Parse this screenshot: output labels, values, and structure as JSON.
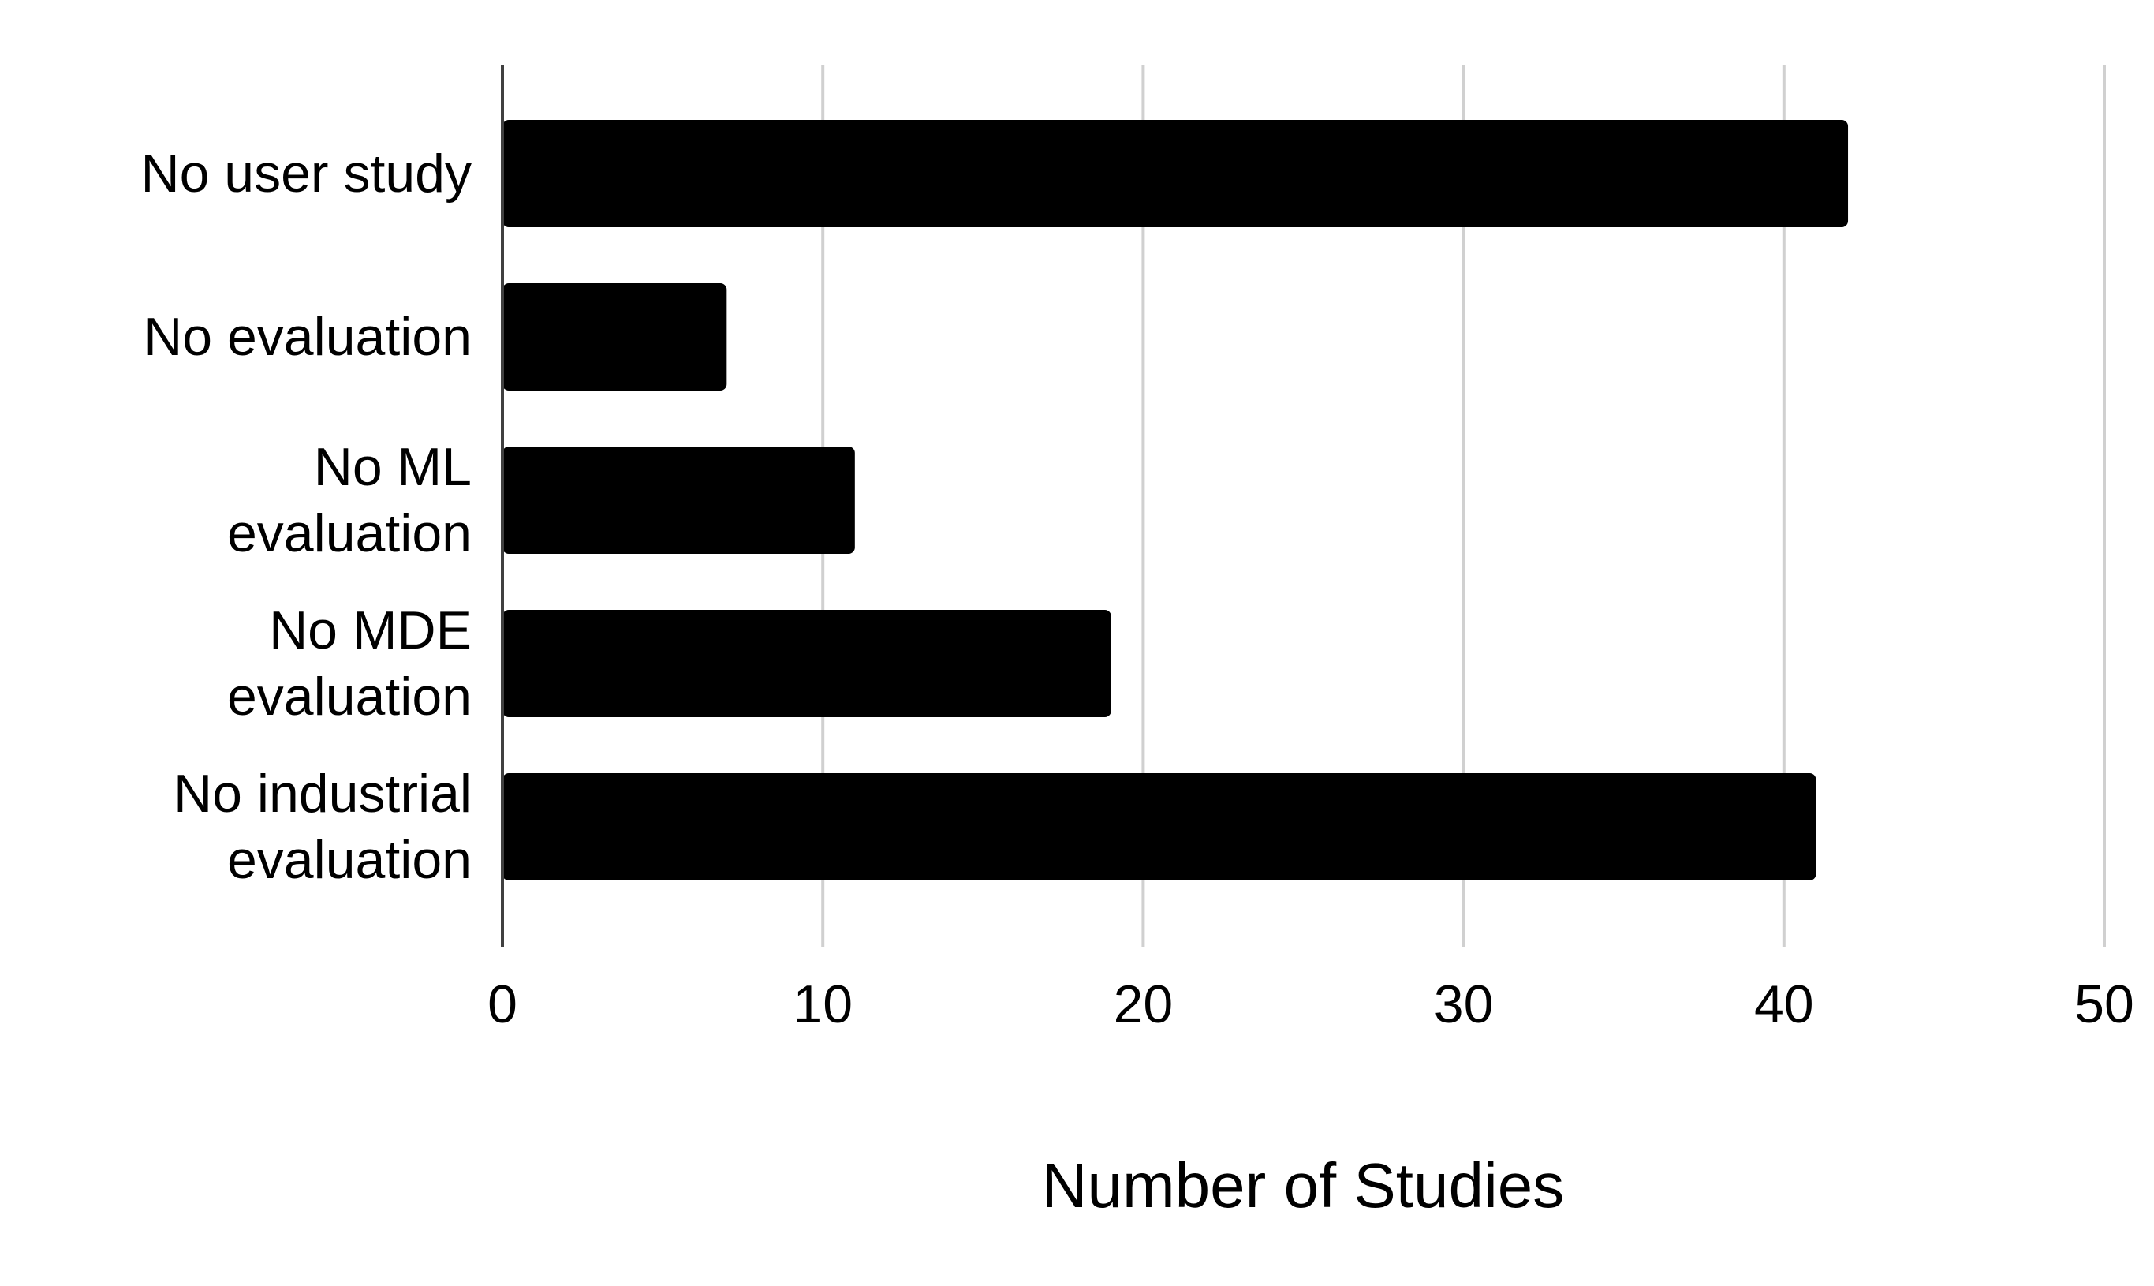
{
  "chart_data": {
    "type": "bar",
    "orientation": "horizontal",
    "categories": [
      [
        "No user study"
      ],
      [
        "No evaluation"
      ],
      [
        "No ML",
        "evaluation"
      ],
      [
        "No MDE",
        "evaluation"
      ],
      [
        "No industrial",
        "evaluation"
      ]
    ],
    "values": [
      42,
      7,
      11,
      19,
      41
    ],
    "xlabel": "Number of Studies",
    "ylabel": "",
    "title": "",
    "xlim": [
      0,
      50
    ],
    "xticks": [
      0,
      10,
      20,
      30,
      40,
      50
    ],
    "grid": "vertical",
    "legend": "none",
    "bar_color": "#000000",
    "grid_color": "#d0d0d0",
    "axis_color": "#404040"
  }
}
